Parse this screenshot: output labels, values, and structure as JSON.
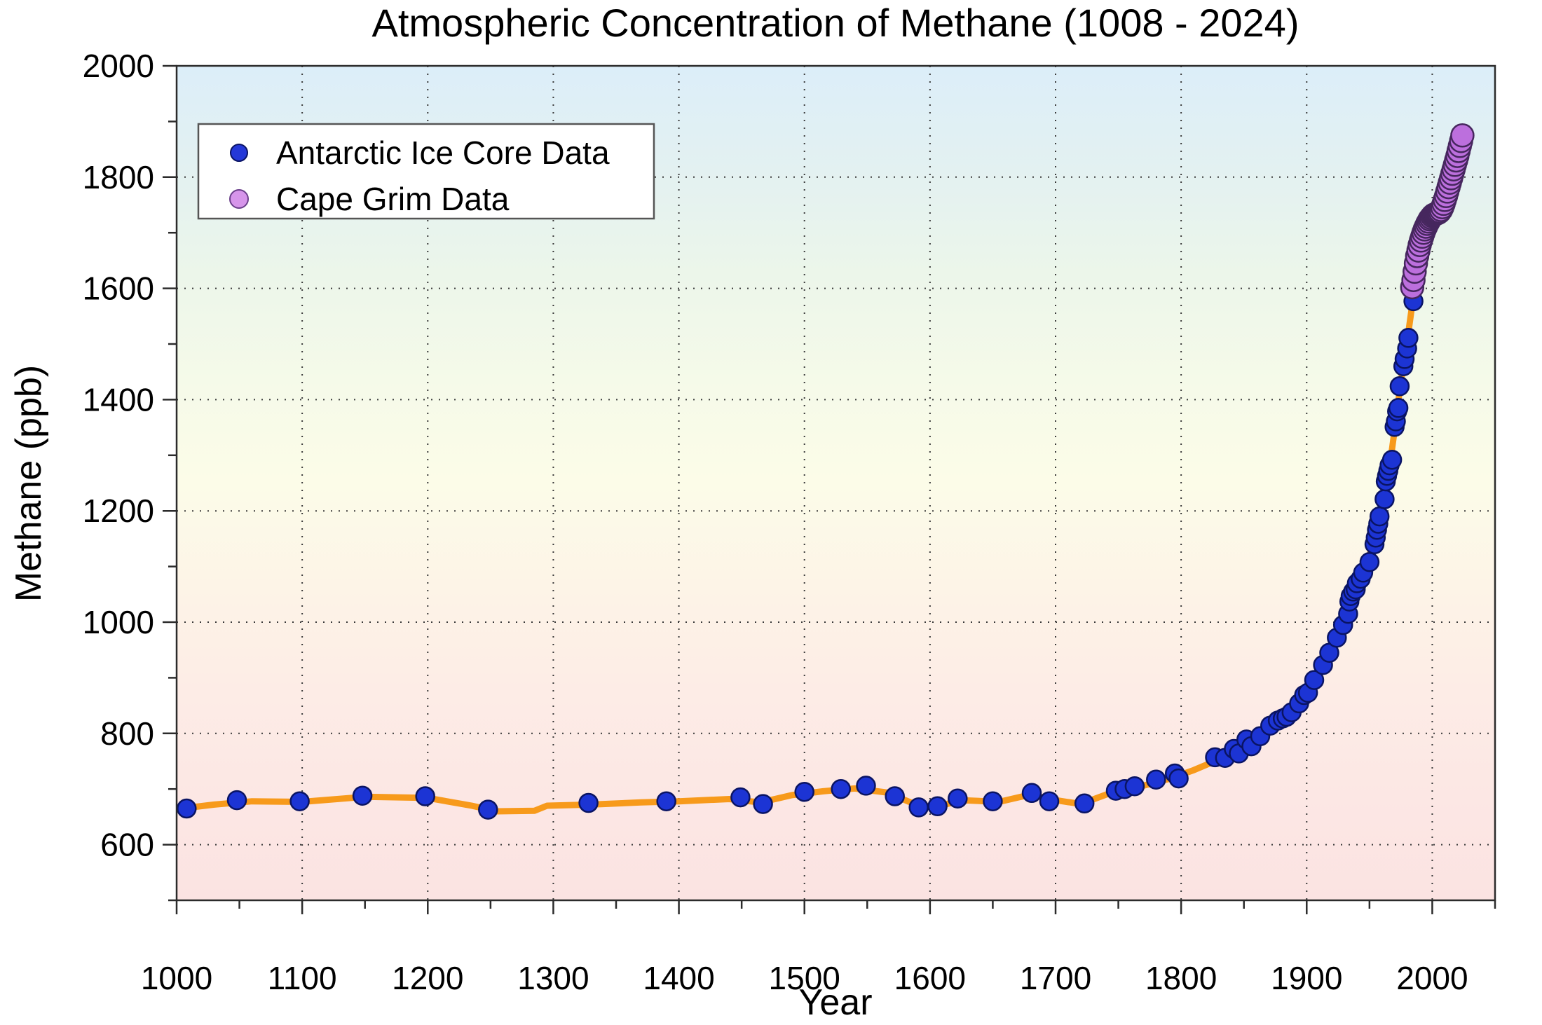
{
  "title": "Atmospheric Concentration of Methane (1008 - 2024)",
  "x_axis": {
    "label": "Year",
    "min": 1000,
    "max": 2050,
    "major_ticks": [
      1000,
      1100,
      1200,
      1300,
      1400,
      1500,
      1600,
      1700,
      1800,
      1900,
      2000
    ],
    "minor_step": 50
  },
  "y_axis": {
    "label": "Methane (ppb)",
    "min": 500,
    "max": 2000,
    "major_ticks": [
      600,
      800,
      1000,
      1200,
      1400,
      1600,
      1800,
      2000
    ],
    "minor_step": 100
  },
  "legend": {
    "items": [
      {
        "label": "Antarctic Ice Core Data",
        "color": "#2438d8",
        "edge": "#0a1464",
        "radius": 12
      },
      {
        "label": "Cape Grim Data",
        "color": "#d695ea",
        "edge": "#6a3f8a",
        "radius": 13
      }
    ]
  },
  "colors": {
    "ice_core_fill": "#1c34d4",
    "ice_core_edge": "#0a1464",
    "cape_grim_fill": "#bc6fdd",
    "cape_grim_edge": "#46275e",
    "trend_line": "#f79a1b",
    "grid": "#3a3a3a",
    "spine": "#2b2b2b",
    "background_stops": [
      "#dceef9",
      "#e3f1f1",
      "#ecf6ea",
      "#f5fae9",
      "#fcfce8",
      "#fdf4e7",
      "#fdece6",
      "#fce7e4",
      "#fbe3e2"
    ]
  },
  "chart_data": {
    "type": "scatter",
    "title": "Atmospheric Concentration of Methane (1008 - 2024)",
    "xlabel": "Year",
    "ylabel": "Methane (ppb)",
    "xlim": [
      1000,
      2050
    ],
    "ylim": [
      500,
      2000
    ],
    "grid": "dotted, at every 100 years and every 200 ppb",
    "legend_position": "upper left",
    "series": [
      {
        "name": "Antarctic Ice Core Data",
        "marker": "circle",
        "radius": 13,
        "points": [
          [
            1008,
            665
          ],
          [
            1048,
            680
          ],
          [
            1098,
            678
          ],
          [
            1148,
            688
          ],
          [
            1198,
            687
          ],
          [
            1248,
            663
          ],
          [
            1328,
            675
          ],
          [
            1390,
            678
          ],
          [
            1449,
            685
          ],
          [
            1467,
            673
          ],
          [
            1500,
            695
          ],
          [
            1529,
            700
          ],
          [
            1549,
            706
          ],
          [
            1572,
            687
          ],
          [
            1591,
            667
          ],
          [
            1606,
            669
          ],
          [
            1622,
            683
          ],
          [
            1650,
            678
          ],
          [
            1681,
            693
          ],
          [
            1695,
            678
          ],
          [
            1723,
            674
          ],
          [
            1748,
            697
          ],
          [
            1755,
            700
          ],
          [
            1763,
            705
          ],
          [
            1780,
            717
          ],
          [
            1795,
            728
          ],
          [
            1798,
            719
          ],
          [
            1827,
            757
          ],
          [
            1835,
            756
          ],
          [
            1842,
            772
          ],
          [
            1846,
            764
          ],
          [
            1852,
            789
          ],
          [
            1856,
            777
          ],
          [
            1863,
            795
          ],
          [
            1871,
            814
          ],
          [
            1877,
            823
          ],
          [
            1881,
            827
          ],
          [
            1884,
            830
          ],
          [
            1888,
            838
          ],
          [
            1894,
            854
          ],
          [
            1898,
            869
          ],
          [
            1901,
            873
          ],
          [
            1906,
            896
          ],
          [
            1913,
            923
          ],
          [
            1918,
            945
          ],
          [
            1924,
            972
          ],
          [
            1929,
            995
          ],
          [
            1933,
            1015
          ],
          [
            1934,
            1037
          ],
          [
            1935,
            1047
          ],
          [
            1937,
            1055
          ],
          [
            1939,
            1059
          ],
          [
            1940,
            1070
          ],
          [
            1943,
            1078
          ],
          [
            1945,
            1089
          ],
          [
            1950,
            1108
          ],
          [
            1954,
            1140
          ],
          [
            1955,
            1152
          ],
          [
            1956,
            1166
          ],
          [
            1957,
            1177
          ],
          [
            1958,
            1190
          ],
          [
            1962,
            1221
          ],
          [
            1963,
            1253
          ],
          [
            1964,
            1263
          ],
          [
            1965,
            1272
          ],
          [
            1966,
            1282
          ],
          [
            1968,
            1292
          ],
          [
            1970,
            1351
          ],
          [
            1971,
            1361
          ],
          [
            1972,
            1379
          ],
          [
            1973,
            1385
          ],
          [
            1974,
            1424
          ],
          [
            1977,
            1460
          ],
          [
            1978,
            1473
          ],
          [
            1980,
            1492
          ],
          [
            1981,
            1511
          ],
          [
            1985,
            1577
          ]
        ]
      },
      {
        "name": "Cape Grim Data",
        "marker": "circle",
        "radius": 16,
        "points": [
          [
            1984,
            1602
          ],
          [
            1985,
            1615
          ],
          [
            1986,
            1630
          ],
          [
            1987,
            1645
          ],
          [
            1988,
            1658
          ],
          [
            1989,
            1668
          ],
          [
            1990,
            1678
          ],
          [
            1991,
            1686
          ],
          [
            1992,
            1693
          ],
          [
            1993,
            1700
          ],
          [
            1994,
            1706
          ],
          [
            1995,
            1711
          ],
          [
            1996,
            1716
          ],
          [
            1997,
            1720
          ],
          [
            1998,
            1724
          ],
          [
            1999,
            1727
          ],
          [
            2000,
            1730
          ],
          [
            2001,
            1732
          ],
          [
            2002,
            1733
          ],
          [
            2003,
            1734
          ],
          [
            2004,
            1735
          ],
          [
            2005,
            1736
          ],
          [
            2006,
            1738
          ],
          [
            2007,
            1741
          ],
          [
            2008,
            1746
          ],
          [
            2009,
            1752
          ],
          [
            2010,
            1759
          ],
          [
            2011,
            1766
          ],
          [
            2012,
            1774
          ],
          [
            2013,
            1782
          ],
          [
            2014,
            1790
          ],
          [
            2015,
            1798
          ],
          [
            2016,
            1806
          ],
          [
            2017,
            1814
          ],
          [
            2018,
            1822
          ],
          [
            2019,
            1830
          ],
          [
            2020,
            1838
          ],
          [
            2021,
            1847
          ],
          [
            2022,
            1856
          ],
          [
            2023,
            1865
          ],
          [
            2024,
            1875
          ]
        ]
      },
      {
        "name": "Smoothed trend line",
        "marker": "none",
        "line_width": 9,
        "points": [
          [
            1000,
            664
          ],
          [
            1030,
            672
          ],
          [
            1060,
            678
          ],
          [
            1100,
            677
          ],
          [
            1150,
            686
          ],
          [
            1200,
            684
          ],
          [
            1235,
            670
          ],
          [
            1255,
            660
          ],
          [
            1285,
            661
          ],
          [
            1295,
            670
          ],
          [
            1330,
            672
          ],
          [
            1370,
            676
          ],
          [
            1400,
            678
          ],
          [
            1440,
            682
          ],
          [
            1465,
            676
          ],
          [
            1490,
            689
          ],
          [
            1515,
            696
          ],
          [
            1540,
            701
          ],
          [
            1565,
            694
          ],
          [
            1590,
            671
          ],
          [
            1605,
            668
          ],
          [
            1625,
            680
          ],
          [
            1655,
            677
          ],
          [
            1680,
            690
          ],
          [
            1700,
            680
          ],
          [
            1720,
            673
          ],
          [
            1745,
            694
          ],
          [
            1770,
            706
          ],
          [
            1790,
            718
          ],
          [
            1810,
            734
          ],
          [
            1830,
            753
          ],
          [
            1850,
            770
          ],
          [
            1870,
            806
          ],
          [
            1885,
            835
          ],
          [
            1900,
            872
          ],
          [
            1910,
            908
          ],
          [
            1920,
            948
          ],
          [
            1930,
            998
          ],
          [
            1940,
            1058
          ],
          [
            1950,
            1120
          ],
          [
            1958,
            1180
          ],
          [
            1965,
            1262
          ],
          [
            1970,
            1345
          ],
          [
            1975,
            1432
          ],
          [
            1980,
            1505
          ],
          [
            1984,
            1570
          ],
          [
            1988,
            1620
          ],
          [
            1992,
            1660
          ],
          [
            1996,
            1695
          ],
          [
            2000,
            1718
          ],
          [
            2004,
            1728
          ],
          [
            2008,
            1745
          ],
          [
            2012,
            1772
          ],
          [
            2016,
            1805
          ],
          [
            2020,
            1838
          ],
          [
            2024,
            1870
          ]
        ]
      }
    ]
  }
}
